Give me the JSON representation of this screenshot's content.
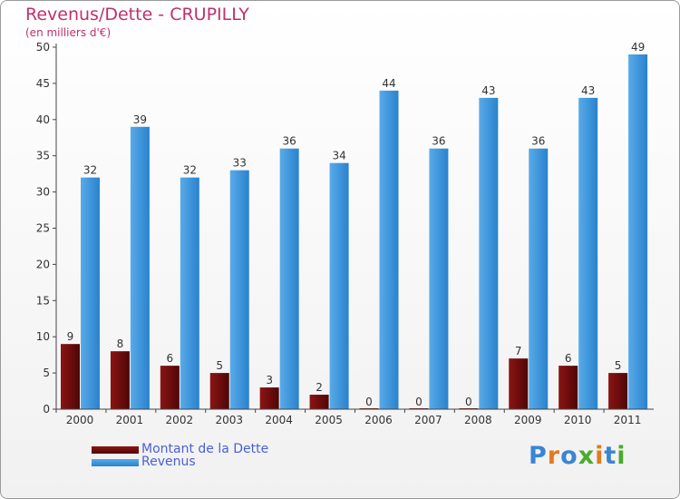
{
  "chart_data": {
    "type": "bar",
    "title": "Revenus/Dette - CRUPILLY",
    "subtitle": "(en milliers d'€)",
    "categories": [
      "2000",
      "2001",
      "2002",
      "2003",
      "2004",
      "2005",
      "2006",
      "2007",
      "2008",
      "2009",
      "2010",
      "2011"
    ],
    "series": [
      {
        "name": "Montant de la Dette",
        "color": "#7a0f0f",
        "values": [
          9,
          8,
          6,
          5,
          3,
          2,
          0,
          0,
          0,
          7,
          6,
          5
        ]
      },
      {
        "name": "Revenus",
        "color": "#3d95dc",
        "values": [
          32,
          39,
          32,
          33,
          36,
          34,
          44,
          36,
          43,
          36,
          43,
          49
        ]
      }
    ],
    "ylim": [
      0,
      50
    ],
    "yticks": [
      0,
      5,
      10,
      15,
      20,
      25,
      30,
      35,
      40,
      45,
      50
    ],
    "grid": false,
    "legend": "bottom-left"
  },
  "logo": {
    "letters": [
      "P",
      "r",
      "o",
      "x",
      "i",
      "t",
      "i"
    ],
    "colors": [
      "#3a85d4",
      "#e07b1f",
      "#3a85d4",
      "#4caa2e",
      "#e07b1f",
      "#3a85d4",
      "#4caa2e"
    ]
  }
}
